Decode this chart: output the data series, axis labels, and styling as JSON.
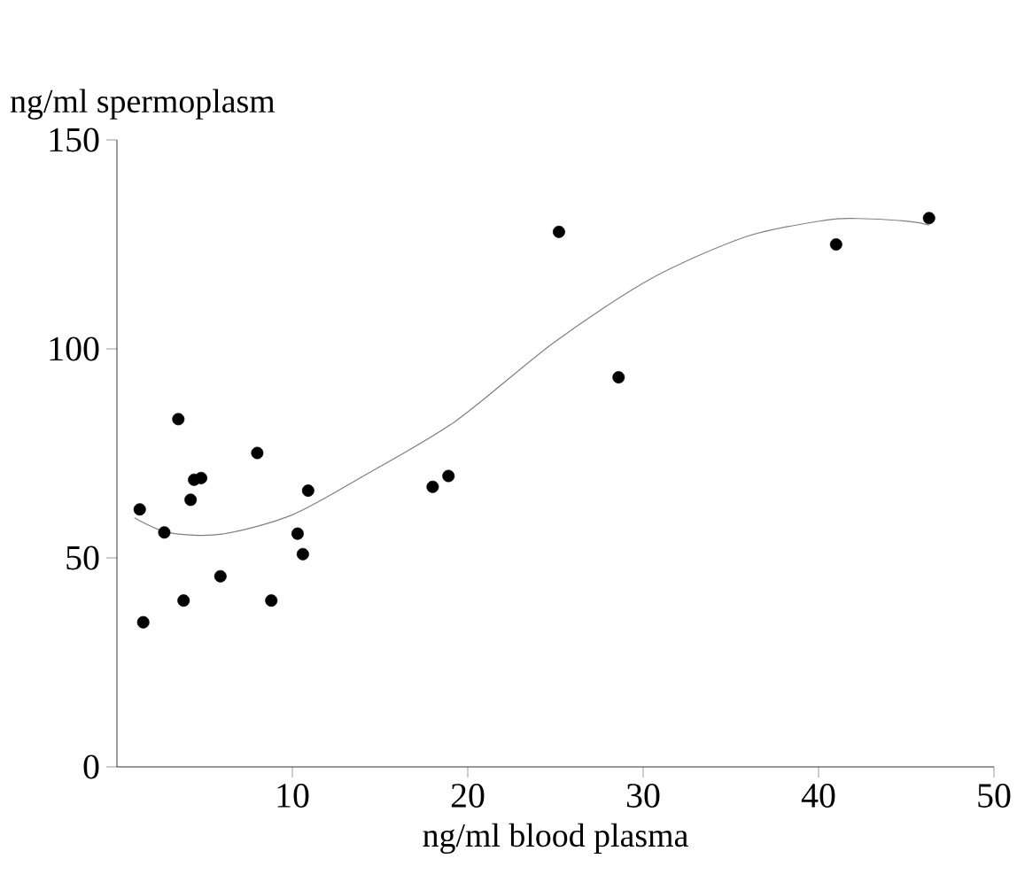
{
  "chart_data": {
    "type": "scatter",
    "xlabel": "ng/ml blood plasma",
    "ylabel": "ng/ml spermoplasm",
    "xlim": [
      0,
      50
    ],
    "ylim": [
      0,
      150
    ],
    "xticks": [
      10,
      20,
      30,
      40,
      50
    ],
    "yticks": [
      0,
      50,
      100,
      150
    ],
    "grid": false,
    "legend": false,
    "series": [
      {
        "color": "#000000",
        "marker": "circle",
        "x": [
          1.3,
          1.5,
          2.7,
          3.5,
          3.8,
          4.2,
          4.4,
          4.8,
          5.9,
          8.0,
          8.8,
          10.3,
          10.6,
          10.9,
          18.0,
          18.9,
          25.2,
          28.6,
          41.0,
          46.3
        ],
        "values": [
          61.6,
          34.6,
          56.1,
          83.2,
          39.8,
          63.9,
          68.7,
          69.1,
          45.6,
          75.1,
          39.8,
          55.8,
          50.9,
          66.1,
          67.0,
          69.6,
          128.0,
          93.2,
          125.0,
          131.3
        ]
      },
      {
        "type": "line",
        "color": "#808080",
        "marker": "none",
        "line_style": "solid",
        "x": [
          1.0,
          3.0,
          6.0,
          10.0,
          14.1,
          19.3,
          24.9,
          30.4,
          35.9,
          40.4,
          42.2,
          45.2,
          46.3
        ],
        "values": [
          59.6,
          56.0,
          55.7,
          60.3,
          69.7,
          82.7,
          101.5,
          116.7,
          126.9,
          130.8,
          131.2,
          130.5,
          129.6
        ]
      }
    ]
  }
}
